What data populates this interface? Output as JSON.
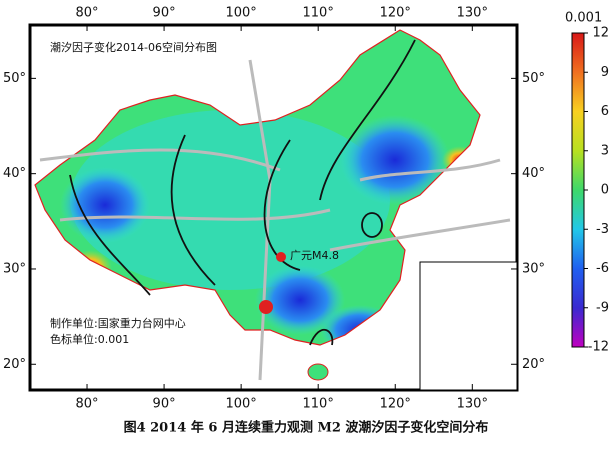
{
  "map": {
    "title": "潮汐因子变化2014-06空间分布图",
    "epicenter_label": "广元M4.8",
    "producer": "制作单位:国家重力台网中心",
    "unit_note": "色标单位:0.001",
    "xlim": [
      72.6,
      135.8
    ],
    "xticks": [
      {
        "value": 80,
        "label": "80°"
      },
      {
        "value": 90,
        "label": "90°"
      },
      {
        "value": 100,
        "label": "100°"
      },
      {
        "value": 110,
        "label": "110°"
      },
      {
        "value": 120,
        "label": "120°"
      },
      {
        "value": 130,
        "label": "130°"
      }
    ],
    "ylim": [
      17.3,
      55.6
    ],
    "yticks": [
      {
        "value": 20,
        "label": "20°"
      },
      {
        "value": 30,
        "label": "30°"
      },
      {
        "value": 40,
        "label": "40°"
      },
      {
        "value": 50,
        "label": "50°"
      }
    ]
  },
  "colorbar": {
    "unit_label": "0.001",
    "lim": [
      -12,
      12
    ],
    "ticks": [
      12,
      9,
      6,
      3,
      0,
      -3,
      -6,
      -9,
      -12
    ],
    "colors": [
      "#c000c0",
      "#3a2ad0",
      "#2060f0",
      "#22c8e8",
      "#3ed86a",
      "#b8e020",
      "#f8d020",
      "#f07020",
      "#d81818"
    ]
  },
  "caption": "图4  2014 年 6 月连续重力观测 M2 波潮汐因子变化空间分布"
}
